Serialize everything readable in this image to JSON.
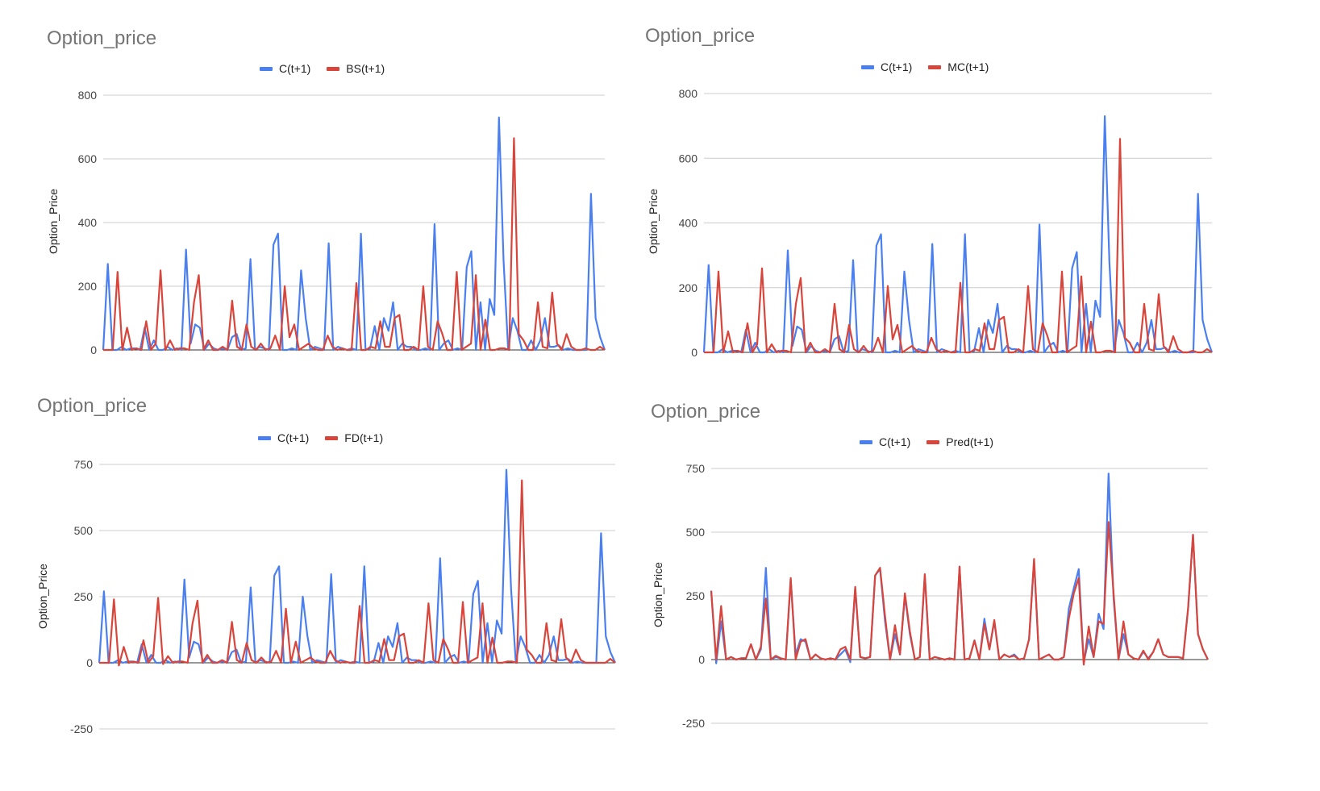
{
  "colors": {
    "actual": "#4a7ff0",
    "model": "#d9453a",
    "grid": "#cccccc"
  },
  "chart_data": [
    {
      "type": "line",
      "title": "Option_price",
      "ylabel": "Option_Price",
      "ylim": [
        0,
        800
      ],
      "yticks": [
        "800",
        "600",
        "400",
        "200",
        "0"
      ],
      "grid": true,
      "legend": "top",
      "series": [
        {
          "name": "C(t+1)",
          "color": "#4a7ff0",
          "values": [
            0,
            270,
            0,
            0,
            10,
            0,
            5,
            5,
            0,
            70,
            0,
            30,
            0,
            0,
            10,
            0,
            5,
            0,
            315,
            20,
            80,
            70,
            0,
            20,
            5,
            0,
            5,
            0,
            40,
            50,
            0,
            5,
            285,
            0,
            10,
            5,
            0,
            330,
            365,
            0,
            0,
            5,
            0,
            250,
            100,
            0,
            10,
            5,
            0,
            335,
            0,
            10,
            5,
            0,
            5,
            0,
            365,
            0,
            5,
            75,
            0,
            100,
            60,
            150,
            0,
            20,
            10,
            10,
            0,
            0,
            5,
            0,
            395,
            0,
            20,
            30,
            0,
            5,
            0,
            260,
            310,
            0,
            150,
            0,
            160,
            110,
            730,
            280,
            0,
            100,
            60,
            0,
            0,
            30,
            0,
            30,
            100,
            10,
            10,
            15,
            0,
            5,
            0,
            0,
            0,
            0,
            490,
            100,
            40,
            0
          ]
        },
        {
          "name": "BS(t+1)",
          "color": "#d9453a",
          "values": [
            0,
            0,
            0,
            245,
            0,
            70,
            0,
            5,
            0,
            90,
            0,
            20,
            250,
            0,
            30,
            0,
            5,
            5,
            0,
            150,
            235,
            0,
            30,
            0,
            0,
            10,
            0,
            155,
            10,
            0,
            80,
            10,
            0,
            20,
            0,
            5,
            45,
            0,
            200,
            40,
            80,
            0,
            10,
            20,
            5,
            0,
            0,
            45,
            10,
            0,
            5,
            0,
            0,
            210,
            0,
            0,
            10,
            5,
            90,
            10,
            10,
            100,
            110,
            0,
            0,
            10,
            0,
            200,
            10,
            0,
            90,
            50,
            0,
            0,
            245,
            0,
            10,
            20,
            235,
            0,
            95,
            0,
            0,
            5,
            5,
            0,
            665,
            50,
            30,
            0,
            0,
            150,
            10,
            5,
            180,
            20,
            0,
            50,
            10,
            0,
            0,
            5,
            0,
            0,
            10,
            0
          ]
        }
      ]
    },
    {
      "type": "line",
      "title": "Option_price",
      "ylabel": "Option_Price",
      "ylim": [
        0,
        800
      ],
      "yticks": [
        "800",
        "600",
        "400",
        "200",
        "0"
      ],
      "grid": true,
      "legend": "top",
      "series": [
        {
          "name": "C(t+1)",
          "color": "#4a7ff0",
          "values": [
            0,
            270,
            0,
            0,
            10,
            0,
            5,
            5,
            0,
            70,
            0,
            30,
            0,
            0,
            10,
            0,
            5,
            0,
            315,
            20,
            80,
            70,
            0,
            20,
            5,
            0,
            5,
            0,
            40,
            50,
            0,
            5,
            285,
            0,
            10,
            5,
            0,
            330,
            365,
            0,
            0,
            5,
            0,
            250,
            100,
            0,
            10,
            5,
            0,
            335,
            0,
            10,
            5,
            0,
            5,
            0,
            365,
            0,
            5,
            75,
            0,
            100,
            60,
            150,
            0,
            20,
            10,
            10,
            0,
            0,
            5,
            0,
            395,
            0,
            20,
            30,
            0,
            5,
            0,
            260,
            310,
            0,
            150,
            0,
            160,
            110,
            730,
            280,
            0,
            100,
            60,
            0,
            0,
            30,
            0,
            30,
            100,
            10,
            10,
            15,
            0,
            5,
            0,
            0,
            0,
            0,
            490,
            100,
            40,
            0
          ]
        },
        {
          "name": "MC(t+1)",
          "color": "#d9453a",
          "values": [
            0,
            0,
            0,
            250,
            0,
            65,
            0,
            5,
            0,
            90,
            0,
            25,
            260,
            0,
            25,
            0,
            5,
            5,
            0,
            150,
            230,
            0,
            30,
            0,
            0,
            10,
            0,
            150,
            10,
            0,
            85,
            10,
            0,
            20,
            0,
            5,
            45,
            0,
            205,
            40,
            85,
            0,
            10,
            20,
            5,
            0,
            0,
            45,
            10,
            0,
            5,
            0,
            0,
            215,
            0,
            0,
            10,
            5,
            90,
            10,
            10,
            100,
            110,
            0,
            0,
            10,
            0,
            205,
            10,
            0,
            90,
            50,
            0,
            0,
            250,
            0,
            10,
            20,
            235,
            0,
            95,
            0,
            0,
            5,
            5,
            0,
            660,
            45,
            30,
            0,
            0,
            150,
            10,
            5,
            180,
            20,
            0,
            50,
            10,
            0,
            0,
            5,
            0,
            0,
            10,
            0
          ]
        }
      ]
    },
    {
      "type": "line",
      "title": "Option_price",
      "ylabel": "Option_Price",
      "ylim": [
        -250,
        750
      ],
      "yticks": [
        "750",
        "500",
        "250",
        "0",
        "-250"
      ],
      "grid": true,
      "legend": "top",
      "series": [
        {
          "name": "C(t+1)",
          "color": "#4a7ff0",
          "values": [
            0,
            270,
            0,
            0,
            10,
            0,
            5,
            5,
            0,
            70,
            0,
            30,
            0,
            0,
            10,
            0,
            5,
            0,
            315,
            20,
            80,
            70,
            0,
            20,
            5,
            0,
            5,
            0,
            40,
            50,
            0,
            5,
            285,
            0,
            10,
            5,
            0,
            330,
            365,
            0,
            0,
            5,
            0,
            250,
            100,
            0,
            10,
            5,
            0,
            335,
            0,
            10,
            5,
            0,
            5,
            0,
            365,
            0,
            5,
            75,
            0,
            100,
            60,
            150,
            0,
            20,
            10,
            10,
            0,
            0,
            5,
            0,
            395,
            0,
            20,
            30,
            0,
            5,
            0,
            260,
            310,
            0,
            150,
            0,
            160,
            110,
            730,
            280,
            0,
            100,
            60,
            0,
            0,
            30,
            0,
            30,
            100,
            10,
            10,
            15,
            0,
            5,
            0,
            0,
            0,
            0,
            490,
            100,
            40,
            0
          ]
        },
        {
          "name": "FD(t+1)",
          "color": "#d9453a",
          "values": [
            0,
            0,
            0,
            240,
            -10,
            60,
            0,
            5,
            0,
            85,
            0,
            25,
            245,
            -5,
            25,
            0,
            5,
            5,
            0,
            150,
            235,
            0,
            30,
            0,
            0,
            10,
            0,
            155,
            10,
            0,
            75,
            10,
            0,
            20,
            0,
            5,
            45,
            0,
            205,
            0,
            80,
            0,
            10,
            20,
            5,
            0,
            0,
            45,
            10,
            0,
            5,
            0,
            0,
            215,
            0,
            0,
            10,
            5,
            90,
            10,
            10,
            100,
            110,
            0,
            0,
            10,
            0,
            225,
            10,
            0,
            90,
            50,
            0,
            0,
            230,
            0,
            10,
            20,
            225,
            0,
            95,
            0,
            0,
            5,
            5,
            0,
            690,
            50,
            30,
            0,
            0,
            150,
            10,
            5,
            165,
            20,
            0,
            50,
            10,
            0,
            0,
            0,
            0,
            0,
            15,
            0
          ]
        }
      ]
    },
    {
      "type": "line",
      "title": "Option_price",
      "ylabel": "Option_Price",
      "ylim": [
        -250,
        750
      ],
      "yticks": [
        "750",
        "500",
        "250",
        "0",
        "-250"
      ],
      "grid": true,
      "legend": "top",
      "series": [
        {
          "name": "C(t+1)",
          "color": "#4a7ff0",
          "values": [
            270,
            -15,
            150,
            0,
            10,
            0,
            5,
            5,
            60,
            0,
            40,
            360,
            0,
            10,
            5,
            0,
            315,
            20,
            80,
            70,
            0,
            20,
            5,
            0,
            5,
            0,
            20,
            40,
            -10,
            280,
            10,
            5,
            10,
            330,
            355,
            150,
            0,
            100,
            20,
            250,
            100,
            0,
            10,
            330,
            0,
            10,
            5,
            0,
            5,
            0,
            365,
            0,
            5,
            75,
            0,
            160,
            40,
            150,
            0,
            20,
            10,
            20,
            0,
            5,
            80,
            390,
            0,
            10,
            20,
            0,
            0,
            10,
            200,
            280,
            355,
            -10,
            80,
            10,
            180,
            120,
            730,
            240,
            0,
            100,
            20,
            5,
            0,
            30,
            5,
            30,
            80,
            20,
            10,
            10,
            10,
            5,
            200,
            490,
            100,
            40,
            0
          ]
        },
        {
          "name": "Pred(t+1)",
          "color": "#d9453a",
          "values": [
            270,
            0,
            210,
            0,
            10,
            0,
            5,
            5,
            60,
            0,
            50,
            240,
            0,
            15,
            5,
            0,
            320,
            0,
            70,
            80,
            0,
            20,
            5,
            0,
            5,
            0,
            40,
            50,
            0,
            285,
            10,
            5,
            10,
            330,
            360,
            170,
            0,
            135,
            20,
            260,
            110,
            0,
            10,
            335,
            0,
            10,
            5,
            0,
            5,
            0,
            365,
            0,
            5,
            75,
            0,
            140,
            40,
            155,
            0,
            20,
            10,
            15,
            0,
            5,
            80,
            395,
            0,
            10,
            20,
            0,
            0,
            10,
            160,
            260,
            320,
            -20,
            130,
            10,
            150,
            140,
            540,
            260,
            0,
            150,
            20,
            5,
            0,
            35,
            0,
            30,
            80,
            20,
            10,
            10,
            10,
            5,
            200,
            490,
            100,
            40,
            0
          ]
        }
      ]
    }
  ]
}
